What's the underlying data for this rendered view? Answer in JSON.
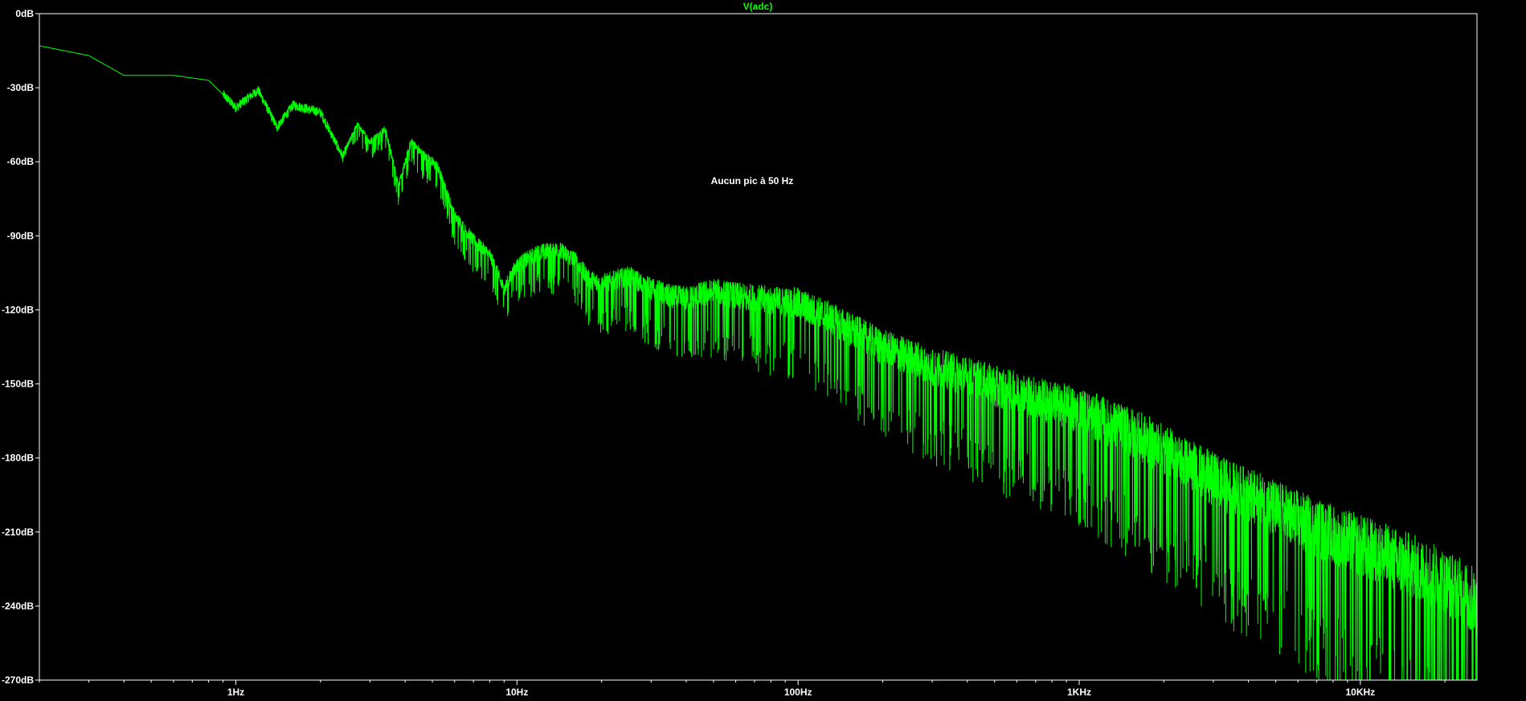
{
  "trace_label": "V(adc)",
  "annotation": "Aucun pic à 50 Hz",
  "colors": {
    "background": "#000000",
    "trace": "#00ff00",
    "axis": "#ffffff",
    "text": "#ffffff",
    "title": "#00ff00"
  },
  "chart_data": {
    "type": "line",
    "x_scale": "log",
    "xlim": [
      0.2,
      26000
    ],
    "ylim": [
      -270,
      0
    ],
    "grid": false,
    "x_ticks": [
      {
        "value": 1,
        "label": "1Hz"
      },
      {
        "value": 10,
        "label": "10Hz"
      },
      {
        "value": 100,
        "label": "100Hz"
      },
      {
        "value": 1000,
        "label": "1KHz"
      },
      {
        "value": 10000,
        "label": "10KHz"
      }
    ],
    "y_ticks": [
      {
        "value": 0,
        "label": "0dB"
      },
      {
        "value": -30,
        "label": "-30dB"
      },
      {
        "value": -60,
        "label": "-60dB"
      },
      {
        "value": -90,
        "label": "-90dB"
      },
      {
        "value": -120,
        "label": "-120dB"
      },
      {
        "value": -150,
        "label": "-150dB"
      },
      {
        "value": -180,
        "label": "-180dB"
      },
      {
        "value": -210,
        "label": "-210dB"
      },
      {
        "value": -240,
        "label": "-240dB"
      },
      {
        "value": -270,
        "label": "-270dB"
      }
    ],
    "series": [
      {
        "name": "V(adc)",
        "x": [
          0.2,
          0.3,
          0.4,
          0.6,
          0.8,
          1.0,
          1.2,
          1.4,
          1.6,
          2.0,
          2.4,
          2.7,
          3.0,
          3.4,
          3.8,
          4.2,
          4.6,
          5.2,
          6.0,
          7.0,
          8.0,
          9.0,
          10,
          12,
          14,
          16,
          18,
          20,
          25,
          30,
          35,
          40,
          50,
          60,
          70,
          80,
          100,
          120,
          150,
          200,
          250,
          300,
          400,
          500,
          700,
          1000,
          1500,
          2000,
          3000,
          5000,
          7000,
          10000,
          15000,
          20000,
          26000
        ],
        "y": [
          -13,
          -17,
          -25,
          -25,
          -27,
          -38,
          -31,
          -46,
          -37,
          -40,
          -58,
          -45,
          -52,
          -47,
          -70,
          -52,
          -57,
          -62,
          -82,
          -92,
          -98,
          -112,
          -102,
          -97,
          -96,
          -100,
          -108,
          -110,
          -107,
          -112,
          -115,
          -116,
          -113,
          -115,
          -116,
          -117,
          -118,
          -122,
          -128,
          -136,
          -140,
          -144,
          -148,
          -152,
          -157,
          -162,
          -170,
          -178,
          -190,
          -202,
          -210,
          -217,
          -225,
          -232,
          -240
        ]
      }
    ]
  }
}
